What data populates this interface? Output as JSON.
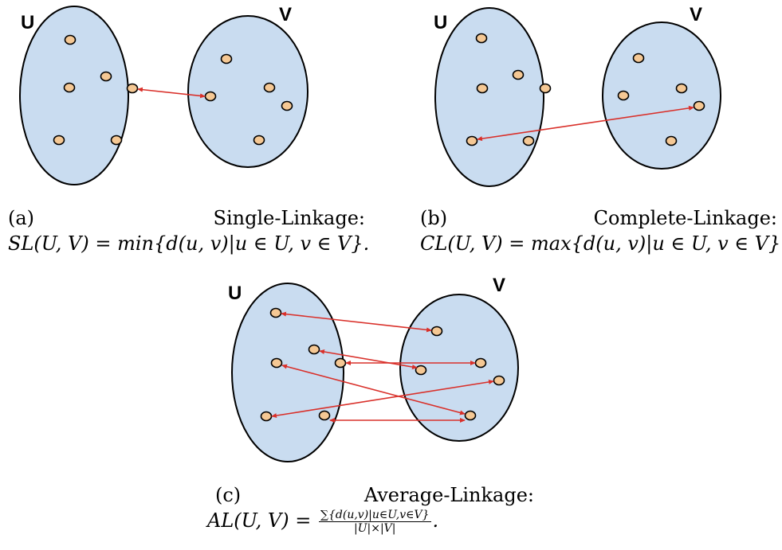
{
  "panels": [
    {
      "id": "a",
      "set_u_label": "U",
      "set_v_label": "V",
      "tag": "(a)",
      "title": "Single-Linkage:",
      "formula_name": "SL",
      "formula_body": "(U, V) = min{d(u, v)|u ∈ U, v ∈ V}."
    },
    {
      "id": "b",
      "set_u_label": "U",
      "set_v_label": "V",
      "tag": "(b)",
      "title": "Complete-Linkage:",
      "formula_name": "CL",
      "formula_body": "(U, V) = max{d(u, v)|u ∈ U, v ∈ V}."
    },
    {
      "id": "c",
      "set_u_label": "U",
      "set_v_label": "V",
      "tag": "(c)",
      "title": "Average-Linkage:",
      "formula_name": "AL",
      "formula_lhs": "(U, V) =",
      "formula_num": "∑{d(u,v)|u∈U,v∈V}",
      "formula_den": "|U|×|V|",
      "formula_end": "."
    }
  ],
  "colors": {
    "ellipse_fill": "#c9dcf0",
    "point_fill": "#f5c894",
    "link": "#d9302a"
  }
}
